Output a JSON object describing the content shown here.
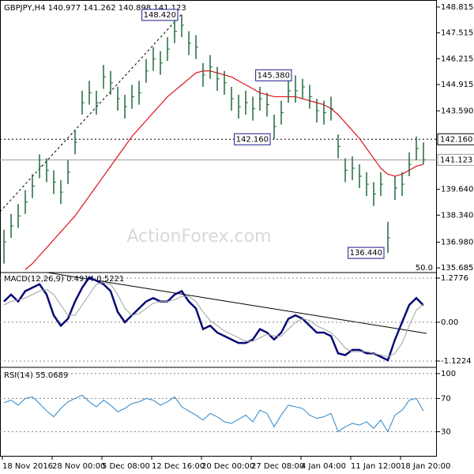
{
  "chart_data": [
    {
      "type": "ohlc",
      "title": "GBPJPY,H4  140.977 141.262 140.898 141.123",
      "watermark": "ActionForex.com",
      "fib_label": "50.0",
      "categories": [
        "18 Nov 2016",
        null,
        null,
        null,
        null,
        null,
        null,
        "28 Nov 00:00",
        null,
        null,
        null,
        null,
        null,
        null,
        "5 Dec 08:00",
        null,
        null,
        null,
        null,
        null,
        null,
        "12 Dec 16:00",
        null,
        null,
        null,
        null,
        null,
        null,
        "20 Dec 00:00",
        null,
        null,
        null,
        null,
        null,
        null,
        "27 Dec 08:00",
        null,
        null,
        null,
        null,
        null,
        null,
        "4 Jan 04:00",
        null,
        null,
        null,
        null,
        null,
        null,
        "11 Jan 12:00",
        null,
        null,
        null,
        null,
        null,
        null,
        "18 Jan 20:00",
        null,
        null,
        null
      ],
      "high": [
        137.6,
        138.4,
        138.9,
        139.6,
        140.4,
        141.4,
        141.2,
        140.6,
        140.1,
        141.1,
        142.6,
        144.6,
        145.1,
        144.6,
        145.9,
        145.6,
        144.8,
        144.4,
        144.9,
        145.1,
        146.2,
        146.8,
        146.6,
        147.3,
        148.2,
        148.42,
        147.6,
        147.4,
        146.0,
        146.4,
        145.8,
        145.6,
        144.8,
        144.4,
        144.6,
        144.3,
        144.8,
        144.5,
        143.4,
        144.1,
        145.2,
        145.38,
        145.2,
        144.9,
        144.2,
        144.1,
        144.3,
        142.4,
        141.2,
        141.3,
        140.9,
        140.5,
        140.0,
        140.5,
        138.0,
        140.3,
        140.5,
        141.5,
        142.3,
        142.0
      ],
      "low": [
        135.9,
        137.2,
        137.7,
        138.4,
        139.2,
        140.2,
        140.0,
        139.4,
        138.9,
        139.9,
        141.4,
        143.4,
        143.9,
        143.4,
        144.7,
        144.4,
        143.6,
        143.2,
        143.7,
        143.9,
        145.0,
        145.6,
        145.4,
        146.1,
        147.0,
        147.3,
        146.4,
        146.2,
        144.8,
        145.2,
        144.6,
        144.4,
        143.6,
        143.2,
        143.4,
        143.1,
        143.6,
        143.3,
        142.16,
        142.9,
        144.0,
        144.0,
        144.2,
        143.7,
        143.0,
        142.9,
        143.1,
        141.2,
        140.0,
        140.1,
        139.7,
        139.3,
        138.8,
        139.3,
        136.44,
        139.1,
        139.3,
        140.3,
        141.1,
        140.9
      ],
      "close": [
        137.0,
        137.8,
        138.3,
        139.0,
        139.8,
        140.8,
        140.6,
        140.0,
        139.5,
        140.5,
        142.0,
        144.0,
        144.5,
        144.0,
        145.3,
        145.0,
        144.2,
        143.8,
        144.3,
        144.5,
        145.6,
        146.2,
        146.0,
        146.7,
        147.6,
        147.9,
        147.0,
        146.8,
        145.4,
        145.8,
        145.2,
        145.0,
        144.2,
        143.8,
        144.0,
        143.7,
        144.2,
        143.9,
        142.8,
        143.5,
        144.6,
        144.6,
        144.8,
        144.3,
        143.6,
        143.5,
        143.7,
        141.8,
        140.6,
        140.7,
        140.3,
        139.9,
        139.4,
        139.9,
        137.2,
        139.7,
        139.9,
        140.9,
        141.7,
        141.123
      ],
      "bar_color": "#1f6b3a",
      "ma": {
        "color": "#e0101a",
        "values": [
          null,
          null,
          null,
          135.6,
          135.9,
          136.3,
          136.7,
          137.1,
          137.5,
          137.9,
          138.3,
          138.8,
          139.3,
          139.8,
          140.3,
          140.8,
          141.3,
          141.8,
          142.3,
          142.7,
          143.1,
          143.5,
          143.9,
          144.3,
          144.6,
          144.9,
          145.2,
          145.5,
          145.6,
          145.6,
          145.5,
          145.4,
          145.3,
          145.1,
          144.9,
          144.7,
          144.5,
          144.4,
          144.3,
          144.3,
          144.3,
          144.3,
          144.2,
          144.1,
          144.0,
          143.9,
          143.7,
          143.4,
          143.0,
          142.6,
          142.2,
          141.7,
          141.2,
          140.7,
          140.4,
          140.3,
          140.4,
          140.6,
          140.8,
          140.9
        ]
      },
      "annotations": [
        {
          "label": "148.420",
          "value": 148.42
        },
        {
          "label": "145.380",
          "value": 145.38
        },
        {
          "label": "142.160",
          "value": 142.16
        },
        {
          "label": "136.440",
          "value": 136.44
        }
      ],
      "hlines": [
        {
          "label": "142.160",
          "value": 142.16,
          "style": "dashed"
        },
        {
          "label": "141.123",
          "value": 141.123,
          "style": "solid"
        }
      ],
      "ylim": [
        135.45,
        149.17
      ],
      "yticks": [
        148.815,
        147.515,
        146.215,
        144.915,
        {
          "value": 143.59,
          "label": "143.590"
        },
        {
          "value": 139.64,
          "label": "139.640"
        },
        {
          "value": 138.34,
          "label": "138.340"
        },
        {
          "value": 136.98,
          "label": "136.980"
        },
        135.685
      ]
    },
    {
      "type": "line",
      "title": "MACD(12,26,9) 0.4914 0.5221",
      "series": [
        {
          "color": "#0a0a78",
          "width": 2.5,
          "values": [
            0.6,
            0.8,
            0.6,
            0.9,
            1.0,
            1.1,
            0.8,
            0.2,
            -0.1,
            0.1,
            0.6,
            1.0,
            1.3,
            1.2,
            1.1,
            0.9,
            0.3,
            0.0,
            0.2,
            0.4,
            0.6,
            0.7,
            0.6,
            0.6,
            0.8,
            0.9,
            0.6,
            0.4,
            -0.2,
            -0.1,
            -0.3,
            -0.4,
            -0.5,
            -0.6,
            -0.6,
            -0.5,
            -0.2,
            -0.3,
            -0.5,
            -0.3,
            0.1,
            0.2,
            0.1,
            -0.1,
            -0.3,
            -0.3,
            -0.4,
            -0.9,
            -0.95,
            -0.8,
            -0.8,
            -0.9,
            -0.9,
            -1.0,
            -1.1,
            -0.5,
            0.0,
            0.5,
            0.7,
            0.49
          ]
        },
        {
          "color": "#a0a0a0",
          "width": 1,
          "values": [
            0.5,
            0.6,
            0.65,
            0.7,
            0.8,
            0.9,
            0.95,
            0.8,
            0.5,
            0.2,
            0.2,
            0.5,
            0.8,
            1.1,
            1.15,
            1.1,
            0.8,
            0.4,
            0.2,
            0.25,
            0.4,
            0.55,
            0.6,
            0.6,
            0.65,
            0.75,
            0.75,
            0.6,
            0.3,
            0.05,
            -0.1,
            -0.25,
            -0.35,
            -0.45,
            -0.55,
            -0.55,
            -0.45,
            -0.35,
            -0.4,
            -0.4,
            -0.2,
            0.0,
            0.1,
            0.05,
            -0.1,
            -0.2,
            -0.3,
            -0.5,
            -0.75,
            -0.85,
            -0.85,
            -0.85,
            -0.9,
            -0.95,
            -1.0,
            -0.9,
            -0.6,
            -0.1,
            0.35,
            0.52
          ]
        }
      ],
      "ylim": [
        -1.305,
        1.437
      ],
      "yticks": [
        1.2776,
        {
          "value": 0,
          "label": "0.00"
        },
        -1.1224
      ],
      "grid": true
    },
    {
      "type": "line",
      "title": "RSI(14) 55.0689",
      "series": [
        {
          "color": "#2b86c8",
          "width": 1,
          "values": [
            65,
            68,
            62,
            70,
            72,
            64,
            55,
            48,
            58,
            66,
            70,
            74,
            66,
            60,
            68,
            62,
            54,
            58,
            64,
            66,
            70,
            68,
            62,
            66,
            72,
            60,
            55,
            50,
            44,
            52,
            48,
            42,
            40,
            45,
            50,
            42,
            56,
            52,
            36,
            50,
            62,
            60,
            58,
            50,
            46,
            48,
            52,
            30,
            36,
            40,
            38,
            42,
            34,
            44,
            30,
            50,
            56,
            68,
            70,
            55.07
          ]
        }
      ],
      "ylim": [
        0,
        107.5
      ],
      "yticks": [
        30,
        70,
        100
      ],
      "grid": true
    }
  ]
}
